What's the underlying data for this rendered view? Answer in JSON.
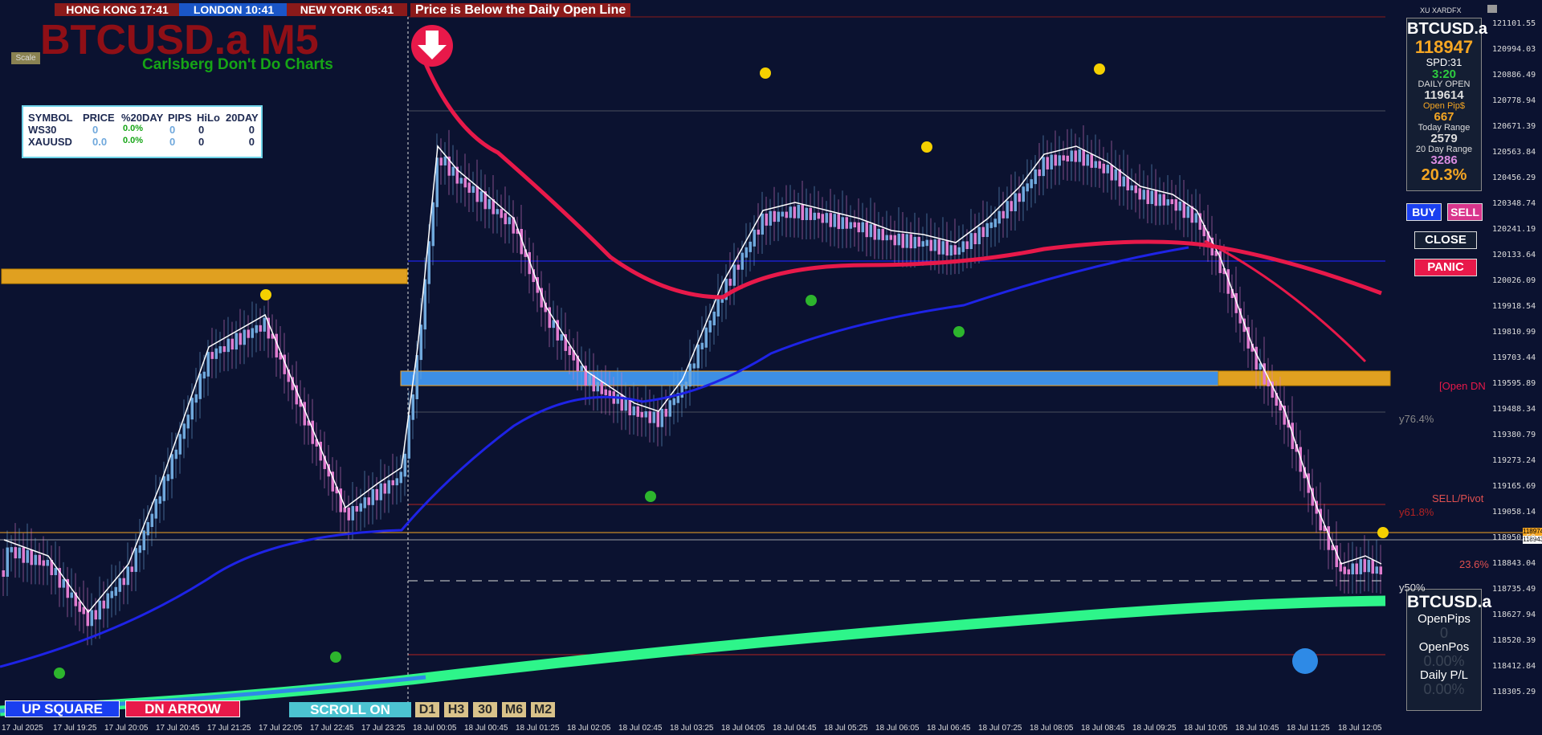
{
  "clocks": {
    "hong_kong": "HONG KONG  17:41",
    "london": "LONDON  10:41",
    "new_york": "NEW YORK  05:41"
  },
  "alert_banner": "Price is Below the Daily Open Line",
  "chart_title": "BTCUSD.a M5",
  "chart_subtitle": "Carlsberg Don't Do Charts",
  "scale_button": "Scale",
  "watchlist": {
    "headers": [
      "SYMBOL",
      "PRICE",
      "%20DAY",
      "PIPS",
      "HiLo",
      "20DAY"
    ],
    "rows": [
      {
        "symbol": "WS30",
        "price": "0",
        "pct": "0.0%",
        "pips": "0",
        "hilo": "0",
        "day20": "0"
      },
      {
        "symbol": "XAUUSD",
        "price": "0.0",
        "pct": "0.0%",
        "pips": "0",
        "hilo": "0",
        "day20": "0"
      }
    ]
  },
  "info_panel": {
    "header_label": "XU XARDFX",
    "symbol": "BTCUSD.a",
    "price": "118947",
    "spread": "SPD:31",
    "timer": "3:20",
    "daily_open_label": "DAILY OPEN",
    "daily_open": "119614",
    "open_pips_label": "Open Pip$",
    "open_pips": "667",
    "today_range_label": "Today Range",
    "today_range": "2579",
    "day20_range_label": "20 Day Range",
    "day20_range": "3286",
    "pct": "20.3%"
  },
  "trade_buttons": {
    "buy": "BUY",
    "sell": "SELL",
    "close": "CLOSE",
    "panic": "PANIC"
  },
  "position_panel": {
    "symbol": "BTCUSD.a",
    "open_pips_label": "OpenPips",
    "open_pips": "0",
    "open_pos_label": "OpenPos",
    "open_pos": "0.00%",
    "daily_pl_label": "Daily P/L",
    "daily_pl": "0.00%"
  },
  "level_labels": {
    "open_dn": "[Open DN",
    "y76": "y76.4%",
    "sell_pivot": "SELL/Pivot",
    "y61": "y61.8%",
    "p23": "23.6%",
    "y50": "y50%"
  },
  "price_tags": {
    "ask": "118974.29",
    "bid": "118943.36"
  },
  "y_axis": [
    "121101.55",
    "120994.03",
    "120886.49",
    "120778.94",
    "120671.39",
    "120563.84",
    "120456.29",
    "120348.74",
    "120241.19",
    "120133.64",
    "120026.09",
    "119918.54",
    "119810.99",
    "119703.44",
    "119595.89",
    "119488.34",
    "119380.79",
    "119273.24",
    "119165.69",
    "119058.14",
    "118950.59",
    "118843.04",
    "118735.49",
    "118627.94",
    "118520.39",
    "118412.84",
    "118305.29"
  ],
  "x_axis": [
    "17 Jul 2025",
    "17 Jul 19:25",
    "17 Jul 20:05",
    "17 Jul 20:45",
    "17 Jul 21:25",
    "17 Jul 22:05",
    "17 Jul 22:45",
    "17 Jul 23:25",
    "18 Jul 00:05",
    "18 Jul 00:45",
    "18 Jul 01:25",
    "18 Jul 02:05",
    "18 Jul 02:45",
    "18 Jul 03:25",
    "18 Jul 04:05",
    "18 Jul 04:45",
    "18 Jul 05:25",
    "18 Jul 06:05",
    "18 Jul 06:45",
    "18 Jul 07:25",
    "18 Jul 08:05",
    "18 Jul 08:45",
    "18 Jul 09:25",
    "18 Jul 10:05",
    "18 Jul 10:45",
    "18 Jul 11:25",
    "18 Jul 12:05"
  ],
  "bottom_buttons": {
    "up_square": "UP SQUARE",
    "dn_arrow": "DN ARROW",
    "scroll": "SCROLL ON"
  },
  "timeframes": [
    "D1",
    "H3",
    "30",
    "M6",
    "M2"
  ],
  "colors": {
    "background": "#0b1230",
    "bull": "#6fa8dc",
    "bear": "#e07ccf",
    "ema_red": "#e8194a",
    "ma_blue": "#1e23e6",
    "ma_green": "#2ef58a",
    "up_dot": "#2db52d",
    "down_dot": "#f5d000"
  }
}
